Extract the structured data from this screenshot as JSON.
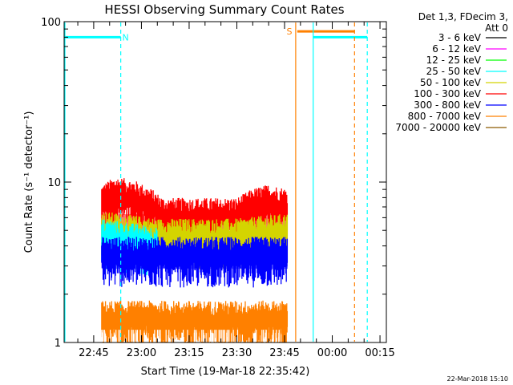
{
  "footer_stamp": "22-Mar-2018 15:10",
  "chart_data": {
    "type": "line",
    "title": "HESSI Observing Summary Count Rates",
    "xlabel": "Start Time (19-Mar-18 22:35:42)",
    "ylabel": "Count Rate (s⁻¹ detector⁻¹)",
    "y_scale": "log",
    "ylim": [
      1,
      100
    ],
    "y_ticks": [
      {
        "value": 1,
        "label": "1"
      },
      {
        "value": 10,
        "label": "10"
      },
      {
        "value": 100,
        "label": "100"
      }
    ],
    "xlim": [
      "22:35:42",
      "00:17:00"
    ],
    "x_ticks": [
      {
        "time": "22:45",
        "label": "22:45"
      },
      {
        "time": "23:00",
        "label": "23:00"
      },
      {
        "time": "23:15",
        "label": "23:15"
      },
      {
        "time": "23:30",
        "label": "23:30"
      },
      {
        "time": "23:45",
        "label": "23:45"
      },
      {
        "time": "00:00",
        "label": "00:00"
      },
      {
        "time": "00:15",
        "label": "00:15"
      }
    ],
    "legend": {
      "placement": "right",
      "header": [
        "Det 1,3, FDecim 3,",
        "Att 0"
      ],
      "entries": [
        {
          "label": "3 - 6 keV",
          "color": "#000000"
        },
        {
          "label": "6 - 12 keV",
          "color": "#ff00ff"
        },
        {
          "label": "12 - 25 keV",
          "color": "#00ff00"
        },
        {
          "label": "25 - 50 keV",
          "color": "#00ffff"
        },
        {
          "label": "50 - 100 keV",
          "color": "#d4d400"
        },
        {
          "label": "100 - 300 keV",
          "color": "#ff0000"
        },
        {
          "label": "300 - 800 keV",
          "color": "#0000ff"
        },
        {
          "label": "800 - 7000 keV",
          "color": "#ff8000"
        },
        {
          "label": "7000 - 20000 keV",
          "color": "#8c5a00"
        }
      ]
    },
    "series": [
      {
        "name": "100 - 300 keV",
        "color": "#ff0000",
        "start": "22:47:30",
        "end": "23:46:00",
        "profile": [
          [
            "22:47:30",
            8.5
          ],
          [
            "22:52:00",
            9.5
          ],
          [
            "22:58:00",
            9.0
          ],
          [
            "23:03:00",
            8.0
          ],
          [
            "23:07:00",
            7.0
          ],
          [
            "23:30:00",
            7.0
          ],
          [
            "23:35:00",
            8.0
          ],
          [
            "23:40:00",
            8.5
          ],
          [
            "23:46:00",
            8.0
          ]
        ]
      },
      {
        "name": "50 - 100 keV",
        "color": "#d4d400",
        "start": "22:47:30",
        "end": "23:46:00",
        "profile": [
          [
            "22:47:30",
            5.8
          ],
          [
            "23:05:00",
            5.2
          ],
          [
            "23:30:00",
            5.2
          ],
          [
            "23:46:00",
            5.6
          ]
        ]
      },
      {
        "name": "25 - 50 keV",
        "color": "#00ffff",
        "start": "22:47:30",
        "end": "23:05:00",
        "profile": [
          [
            "22:47:30",
            5.2
          ],
          [
            "23:05:00",
            4.6
          ]
        ]
      },
      {
        "name": "300 - 800 keV",
        "color": "#0000ff",
        "start": "22:47:30",
        "end": "23:46:00",
        "profile": [
          [
            "22:47:30",
            4.0
          ],
          [
            "23:46:00",
            4.0
          ]
        ]
      },
      {
        "name": "800 - 7000 keV",
        "color": "#ff8000",
        "start": "22:47:30",
        "end": "23:46:00",
        "profile": [
          [
            "22:47:30",
            1.6
          ],
          [
            "23:46:00",
            1.6
          ]
        ]
      }
    ],
    "annotations": [
      {
        "type": "bar",
        "color": "#00ffff",
        "from": "22:35:42",
        "to": "22:53:30",
        "y": 80
      },
      {
        "type": "bar",
        "color": "#ff8000",
        "from": "23:49:00",
        "to": "00:07:00",
        "y": 87
      },
      {
        "type": "bar",
        "color": "#00ffff",
        "from": "23:54:00",
        "to": "00:11:00",
        "y": 80
      },
      {
        "type": "vline",
        "color": "#00ffff",
        "style": "dashed",
        "x": "22:53:30"
      },
      {
        "type": "vline",
        "color": "#ff8000",
        "style": "solid",
        "x": "23:48:30"
      },
      {
        "type": "vline",
        "color": "#00ffff",
        "style": "solid",
        "x": "23:54:00"
      },
      {
        "type": "vline",
        "color": "#ff8000",
        "style": "dashed",
        "x": "00:07:00"
      },
      {
        "type": "vline",
        "color": "#00ffff",
        "style": "dashed",
        "x": "00:11:00"
      },
      {
        "type": "label",
        "text": "N",
        "color": "#00ffff",
        "x": "22:55:00",
        "y": 80
      },
      {
        "type": "label",
        "text": "S",
        "color": "#ff8000",
        "x": "23:46:30",
        "y": 87
      }
    ]
  }
}
